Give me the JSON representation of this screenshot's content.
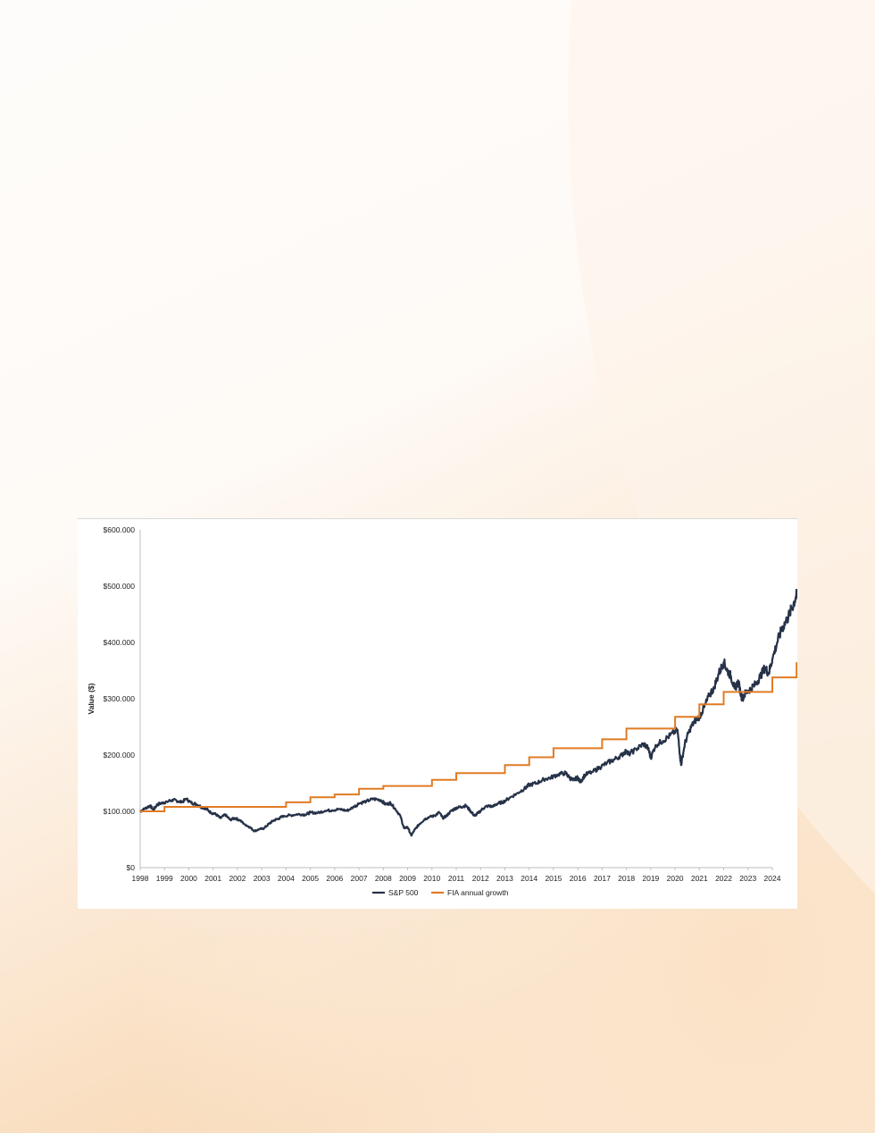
{
  "page": {
    "background_colors": [
      "#fefcfa",
      "#fbe3c8",
      "#f8d9b6"
    ]
  },
  "chart_data": {
    "type": "line",
    "title": "",
    "xlabel": "",
    "ylabel": "Value ($)",
    "xlim": [
      1998,
      2024
    ],
    "ylim": [
      0,
      600000
    ],
    "grid": false,
    "legend_position": "bottom",
    "x_ticks": [
      "1998",
      "1999",
      "2000",
      "2001",
      "2002",
      "2003",
      "2004",
      "2005",
      "2006",
      "2007",
      "2008",
      "2009",
      "2010",
      "2011",
      "2012",
      "2013",
      "2014",
      "2015",
      "2016",
      "2017",
      "2018",
      "2019",
      "2020",
      "2021",
      "2022",
      "2023",
      "2024"
    ],
    "y_ticks": [
      {
        "value": 0,
        "label": "$0"
      },
      {
        "value": 100000,
        "label": "$100.000"
      },
      {
        "value": 200000,
        "label": "$200.000"
      },
      {
        "value": 300000,
        "label": "$300.000"
      },
      {
        "value": 400000,
        "label": "$400.000"
      },
      {
        "value": 500000,
        "label": "$500.000"
      },
      {
        "value": 600000,
        "label": "$600.000"
      }
    ],
    "series": [
      {
        "name": "S&P 500",
        "color": "#263248",
        "style": "line",
        "points": [
          [
            1998.0,
            100000
          ],
          [
            1998.2,
            105000
          ],
          [
            1998.4,
            110000
          ],
          [
            1998.55,
            103000
          ],
          [
            1998.7,
            112000
          ],
          [
            1998.9,
            115000
          ],
          [
            1999.1,
            117000
          ],
          [
            1999.3,
            120000
          ],
          [
            1999.5,
            119000
          ],
          [
            1999.7,
            116000
          ],
          [
            1999.9,
            122000
          ],
          [
            2000.1,
            115000
          ],
          [
            2000.3,
            113000
          ],
          [
            2000.5,
            108000
          ],
          [
            2000.7,
            105000
          ],
          [
            2000.9,
            98000
          ],
          [
            2001.1,
            95000
          ],
          [
            2001.3,
            88000
          ],
          [
            2001.5,
            94000
          ],
          [
            2001.7,
            85000
          ],
          [
            2001.9,
            88000
          ],
          [
            2002.1,
            84000
          ],
          [
            2002.3,
            77000
          ],
          [
            2002.5,
            72000
          ],
          [
            2002.7,
            65000
          ],
          [
            2002.9,
            68000
          ],
          [
            2003.1,
            70000
          ],
          [
            2003.3,
            78000
          ],
          [
            2003.5,
            84000
          ],
          [
            2003.7,
            87000
          ],
          [
            2003.9,
            92000
          ],
          [
            2004.2,
            93000
          ],
          [
            2004.5,
            95000
          ],
          [
            2004.8,
            94000
          ],
          [
            2005.0,
            98000
          ],
          [
            2005.3,
            97000
          ],
          [
            2005.6,
            101000
          ],
          [
            2005.9,
            102000
          ],
          [
            2006.2,
            104000
          ],
          [
            2006.5,
            101000
          ],
          [
            2006.8,
            108000
          ],
          [
            2007.0,
            114000
          ],
          [
            2007.3,
            118000
          ],
          [
            2007.6,
            122000
          ],
          [
            2007.9,
            120000
          ],
          [
            2008.1,
            112000
          ],
          [
            2008.3,
            115000
          ],
          [
            2008.5,
            104000
          ],
          [
            2008.7,
            92000
          ],
          [
            2008.85,
            70000
          ],
          [
            2009.0,
            72000
          ],
          [
            2009.15,
            57000
          ],
          [
            2009.3,
            68000
          ],
          [
            2009.5,
            78000
          ],
          [
            2009.7,
            86000
          ],
          [
            2009.9,
            90000
          ],
          [
            2010.1,
            92000
          ],
          [
            2010.3,
            98000
          ],
          [
            2010.45,
            88000
          ],
          [
            2010.6,
            92000
          ],
          [
            2010.8,
            101000
          ],
          [
            2011.0,
            106000
          ],
          [
            2011.2,
            108000
          ],
          [
            2011.4,
            110000
          ],
          [
            2011.6,
            100000
          ],
          [
            2011.75,
            92000
          ],
          [
            2011.9,
            97000
          ],
          [
            2012.1,
            105000
          ],
          [
            2012.3,
            110000
          ],
          [
            2012.5,
            108000
          ],
          [
            2012.7,
            114000
          ],
          [
            2012.9,
            116000
          ],
          [
            2013.2,
            124000
          ],
          [
            2013.5,
            132000
          ],
          [
            2013.8,
            140000
          ],
          [
            2014.0,
            147000
          ],
          [
            2014.3,
            150000
          ],
          [
            2014.6,
            157000
          ],
          [
            2014.9,
            160000
          ],
          [
            2015.2,
            166000
          ],
          [
            2015.5,
            168000
          ],
          [
            2015.65,
            160000
          ],
          [
            2015.8,
            155000
          ],
          [
            2016.0,
            160000
          ],
          [
            2016.1,
            152000
          ],
          [
            2016.3,
            165000
          ],
          [
            2016.6,
            170000
          ],
          [
            2016.9,
            178000
          ],
          [
            2017.2,
            186000
          ],
          [
            2017.5,
            192000
          ],
          [
            2017.8,
            200000
          ],
          [
            2018.0,
            208000
          ],
          [
            2018.1,
            202000
          ],
          [
            2018.4,
            210000
          ],
          [
            2018.7,
            220000
          ],
          [
            2018.9,
            212000
          ],
          [
            2019.0,
            195000
          ],
          [
            2019.2,
            218000
          ],
          [
            2019.5,
            225000
          ],
          [
            2019.8,
            235000
          ],
          [
            2020.1,
            245000
          ],
          [
            2020.2,
            200000
          ],
          [
            2020.25,
            182000
          ],
          [
            2020.4,
            220000
          ],
          [
            2020.6,
            245000
          ],
          [
            2020.8,
            260000
          ],
          [
            2021.0,
            268000
          ],
          [
            2021.2,
            285000
          ],
          [
            2021.4,
            305000
          ],
          [
            2021.6,
            320000
          ],
          [
            2021.8,
            345000
          ],
          [
            2022.0,
            365000
          ],
          [
            2022.15,
            350000
          ],
          [
            2022.3,
            340000
          ],
          [
            2022.45,
            318000
          ],
          [
            2022.6,
            330000
          ],
          [
            2022.75,
            300000
          ],
          [
            2022.9,
            310000
          ],
          [
            2023.1,
            318000
          ],
          [
            2023.3,
            325000
          ],
          [
            2023.5,
            340000
          ],
          [
            2023.7,
            355000
          ],
          [
            2023.85,
            345000
          ],
          [
            2024.0,
            370000
          ],
          [
            2024.2,
            400000
          ],
          [
            2024.4,
            425000
          ],
          [
            2024.6,
            440000
          ],
          [
            2024.8,
            460000
          ],
          [
            2024.95,
            478000
          ],
          [
            2025.05,
            490000
          ],
          [
            2025.1,
            483000
          ]
        ]
      },
      {
        "name": "FIA annual growth",
        "color": "#e07b24",
        "style": "step",
        "points": [
          [
            1998.0,
            100000
          ],
          [
            1999.0,
            108000
          ],
          [
            2000.0,
            108000
          ],
          [
            2001.0,
            108000
          ],
          [
            2002.0,
            108000
          ],
          [
            2003.0,
            108000
          ],
          [
            2004.0,
            116000
          ],
          [
            2005.0,
            125000
          ],
          [
            2006.0,
            130000
          ],
          [
            2007.0,
            140000
          ],
          [
            2008.0,
            145000
          ],
          [
            2009.0,
            145000
          ],
          [
            2010.0,
            156000
          ],
          [
            2011.0,
            168000
          ],
          [
            2012.0,
            168000
          ],
          [
            2013.0,
            182000
          ],
          [
            2014.0,
            196000
          ],
          [
            2015.0,
            212000
          ],
          [
            2016.0,
            212000
          ],
          [
            2017.0,
            228000
          ],
          [
            2018.0,
            247000
          ],
          [
            2019.0,
            247000
          ],
          [
            2020.0,
            268000
          ],
          [
            2021.0,
            290000
          ],
          [
            2022.0,
            312000
          ],
          [
            2023.0,
            312000
          ],
          [
            2024.0,
            338000
          ],
          [
            2025.0,
            365000
          ]
        ]
      }
    ]
  }
}
